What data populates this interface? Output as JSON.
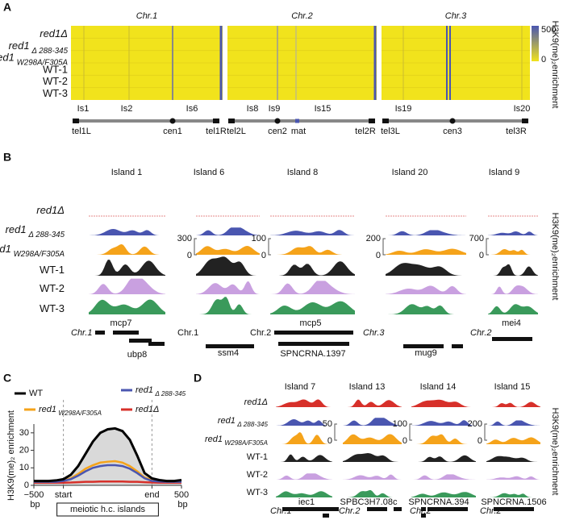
{
  "panel_a": {
    "label": "A",
    "chromosomes": [
      "Chr.1",
      "Chr.2",
      "Chr.3"
    ],
    "rows": [
      "red1Δ",
      "red1 Δ 288-345",
      "red1 W298A/F305A",
      "WT-1",
      "WT-2",
      "WT-3"
    ],
    "colorbar": [
      500,
      0
    ],
    "y_label": "H3K9(me)₂enrichment",
    "islands": [
      "Is1",
      "Is2",
      "Is6",
      "Is8",
      "Is9",
      "Is15",
      "Is19",
      "Is20"
    ],
    "features": [
      "tel1L",
      "cen1",
      "tel1R",
      "tel2L",
      "cen2",
      "mat",
      "tel2R",
      "tel3L",
      "cen3",
      "tel3R"
    ]
  },
  "panel_b": {
    "label": "B",
    "islands": [
      "Island 1",
      "Island 6",
      "Island 8",
      "Island 20",
      "Island 9"
    ],
    "rows": [
      "red1Δ",
      "red1 Δ 288-345",
      "red1 W298A/F305A",
      "WT-1",
      "WT-2",
      "WT-3"
    ],
    "scales": [
      [
        300,
        0
      ],
      [
        100,
        0
      ],
      [
        200,
        0
      ],
      [
        700,
        0
      ]
    ],
    "genes": [
      "Chr.1",
      "mcp7",
      "ubp8",
      "Chr.1",
      "ssm4",
      "Chr.2",
      "mcp5",
      "SPNCRNA.1397",
      "Chr.3",
      "mug9",
      "Chr.2",
      "mei4"
    ],
    "y_label": "H3K9(me)₂enrichment"
  },
  "chart_data": {
    "type": "line",
    "label": "C",
    "y_label": "H3K9(me)₂ enrichment",
    "box_label": "meiotic h.c. islands",
    "x": [
      0,
      5,
      10,
      15,
      20,
      25,
      30,
      35,
      40,
      45,
      50,
      55,
      60,
      65,
      70,
      75,
      80,
      85,
      90,
      95,
      100
    ],
    "xlim": [
      0,
      100
    ],
    "xticks": [
      {
        "value": 0,
        "label": "−500 bp"
      },
      {
        "value": 20,
        "label": "start"
      },
      {
        "value": 80,
        "label": "end"
      },
      {
        "value": 100,
        "label": "500 bp"
      }
    ],
    "ylim": [
      0,
      35
    ],
    "yticks": [
      0,
      10,
      20,
      30
    ],
    "series": [
      {
        "name": "WT",
        "color": "#000000",
        "values": [
          2.5,
          2.5,
          2.5,
          2.8,
          3.5,
          6,
          11,
          18,
          25,
          30,
          32,
          32.5,
          31,
          26,
          17,
          7,
          4,
          3,
          2.5,
          2.5,
          3
        ]
      },
      {
        "name": "red1 Δ 288-345",
        "color": "#4a56b0",
        "values": [
          2,
          2,
          2,
          2,
          2.5,
          3.5,
          5.5,
          8,
          10,
          11,
          11.5,
          11.5,
          11,
          9.5,
          7,
          4,
          2.5,
          2.2,
          2,
          2,
          2
        ]
      },
      {
        "name": "red1 W298A/F305A",
        "color": "#f5a31a",
        "values": [
          2,
          2,
          2,
          2.2,
          2.8,
          4,
          6.5,
          9.5,
          11.5,
          13,
          13.5,
          13.8,
          13,
          11,
          8,
          4.5,
          3,
          2.5,
          2,
          2,
          2
        ]
      },
      {
        "name": "red1Δ",
        "color": "#d7302a",
        "values": [
          1.5,
          1.5,
          1.5,
          1.5,
          1.5,
          1.6,
          1.8,
          2,
          2,
          2.2,
          2.2,
          2.2,
          2.2,
          2,
          2,
          1.8,
          1.6,
          1.5,
          1.5,
          1.5,
          1.5
        ]
      }
    ]
  },
  "panel_d": {
    "label": "D",
    "islands": [
      "Island 7",
      "Island 13",
      "Island 14",
      "Island 15"
    ],
    "rows": [
      "red1Δ",
      "red1 Δ 288-345",
      "red1 W298A/F305A",
      "WT-1",
      "WT-2",
      "WT-3"
    ],
    "scales": [
      [
        50,
        0
      ],
      [
        100,
        0
      ],
      [
        200,
        0
      ]
    ],
    "genes": [
      "Chr.1",
      "iec1",
      "Chr.2",
      "SPBC3H7.08c",
      "Chr.2",
      "SPNCRNA.394",
      "Chr.2",
      "SPNCRNA.1506"
    ],
    "y_label": "H3K9(me)₂enrichment"
  }
}
